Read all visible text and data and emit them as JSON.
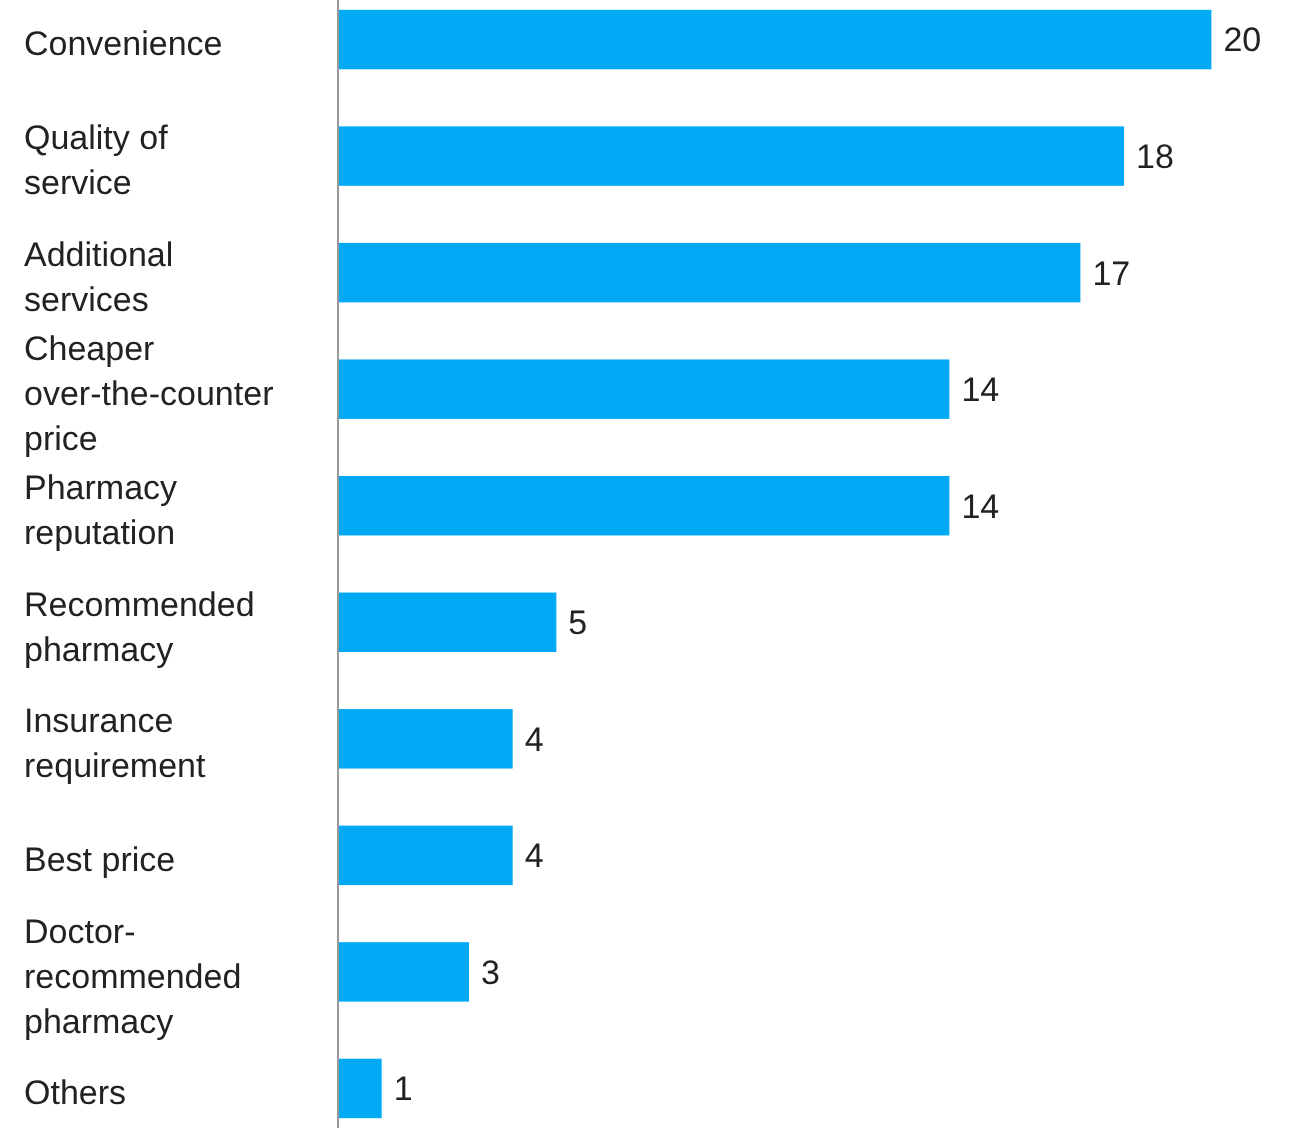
{
  "chart_data": {
    "type": "bar",
    "orientation": "horizontal",
    "categories": [
      "Convenience",
      "Quality of service",
      "Additional services",
      "Cheaper over-the-counter price",
      "Pharmacy reputation",
      "Recommended pharmacy",
      "Insurance requirement",
      "Best price",
      "Doctor-recommended pharmacy",
      "Others"
    ],
    "values": [
      20,
      18,
      17,
      14,
      14,
      5,
      4,
      4,
      3,
      1
    ],
    "color": "#00a9f4",
    "data_labels": true,
    "tick_labels": "y"
  }
}
